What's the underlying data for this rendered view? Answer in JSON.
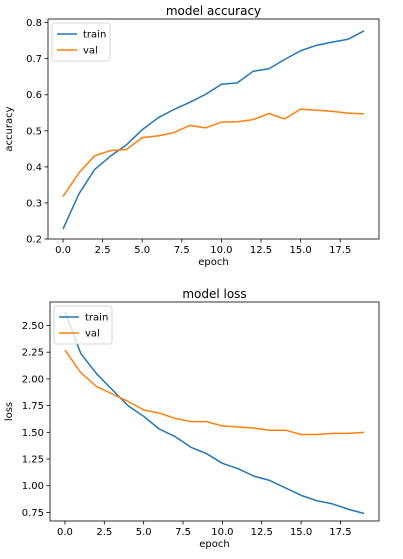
{
  "chart_data": [
    {
      "type": "line",
      "title": "model accuracy",
      "xlabel": "epoch",
      "ylabel": "accuracy",
      "x": [
        0,
        1,
        2,
        3,
        4,
        5,
        6,
        7,
        8,
        9,
        10,
        11,
        12,
        13,
        14,
        15,
        16,
        17,
        18,
        19
      ],
      "xlim": [
        -0.95,
        19.95
      ],
      "ylim": [
        0.2,
        0.81
      ],
      "xticks": [
        0,
        2.5,
        5,
        7.5,
        10,
        12.5,
        15,
        17.5
      ],
      "xtick_labels": [
        "0.0",
        "2.5",
        "5.0",
        "7.5",
        "10.0",
        "12.5",
        "15.0",
        "17.5"
      ],
      "yticks": [
        0.2,
        0.3,
        0.4,
        0.5,
        0.6,
        0.7,
        0.8
      ],
      "ytick_labels": [
        "0.2",
        "0.3",
        "0.4",
        "0.5",
        "0.6",
        "0.7",
        "0.8"
      ],
      "grid": false,
      "legend_position": "top-left",
      "series": [
        {
          "name": "train",
          "color": "#1f77b4",
          "values": [
            0.228,
            0.325,
            0.393,
            0.43,
            0.461,
            0.503,
            0.536,
            0.559,
            0.579,
            0.601,
            0.629,
            0.633,
            0.665,
            0.672,
            0.698,
            0.722,
            0.737,
            0.746,
            0.754,
            0.777
          ]
        },
        {
          "name": "val",
          "color": "#ff7f0e",
          "values": [
            0.318,
            0.383,
            0.431,
            0.445,
            0.448,
            0.481,
            0.486,
            0.495,
            0.515,
            0.508,
            0.524,
            0.525,
            0.531,
            0.548,
            0.533,
            0.56,
            0.557,
            0.554,
            0.549,
            0.547
          ]
        }
      ]
    },
    {
      "type": "line",
      "title": "model loss",
      "xlabel": "epoch",
      "ylabel": "loss",
      "x": [
        0,
        1,
        2,
        3,
        4,
        5,
        6,
        7,
        8,
        9,
        10,
        11,
        12,
        13,
        14,
        15,
        16,
        17,
        18,
        19
      ],
      "xlim": [
        -0.95,
        19.95
      ],
      "ylim": [
        0.67,
        2.72
      ],
      "xticks": [
        0,
        2.5,
        5,
        7.5,
        10,
        12.5,
        15,
        17.5
      ],
      "xtick_labels": [
        "0.0",
        "2.5",
        "5.0",
        "7.5",
        "10.0",
        "12.5",
        "15.0",
        "17.5"
      ],
      "yticks": [
        0.75,
        1.0,
        1.25,
        1.5,
        1.75,
        2.0,
        2.25,
        2.5
      ],
      "ytick_labels": [
        "0.75",
        "1.00",
        "1.25",
        "1.50",
        "1.75",
        "2.00",
        "2.25",
        "2.50"
      ],
      "grid": false,
      "legend_position": "top-left",
      "series": [
        {
          "name": "train",
          "color": "#1f77b4",
          "values": [
            2.63,
            2.24,
            2.05,
            1.9,
            1.75,
            1.65,
            1.53,
            1.46,
            1.36,
            1.3,
            1.21,
            1.16,
            1.09,
            1.05,
            0.98,
            0.91,
            0.86,
            0.83,
            0.78,
            0.74
          ]
        },
        {
          "name": "val",
          "color": "#ff7f0e",
          "values": [
            2.27,
            2.06,
            1.93,
            1.86,
            1.79,
            1.71,
            1.68,
            1.63,
            1.6,
            1.6,
            1.56,
            1.55,
            1.54,
            1.52,
            1.52,
            1.48,
            1.48,
            1.49,
            1.49,
            1.5
          ]
        }
      ]
    }
  ]
}
